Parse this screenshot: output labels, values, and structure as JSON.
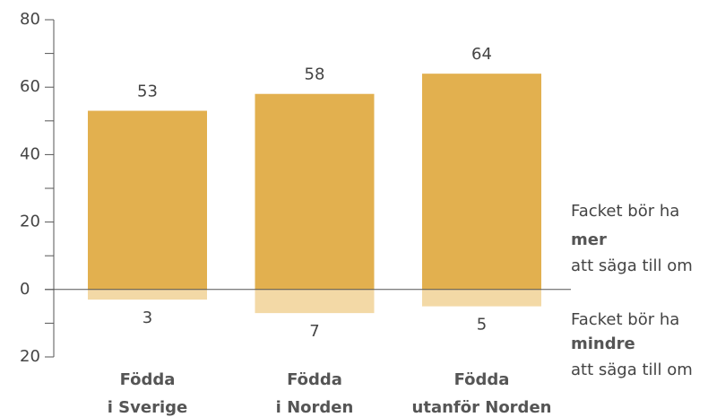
{
  "chart_data": {
    "type": "bar",
    "categories": [
      [
        "Födda",
        "i Sverige"
      ],
      [
        "Födda",
        "i Norden"
      ],
      [
        "Födda",
        "utanför Norden"
      ]
    ],
    "series": [
      {
        "name": [
          "Facket bör ha",
          "mer",
          "att säga till om"
        ],
        "color": "#e2b04f",
        "values": [
          53,
          58,
          64
        ]
      },
      {
        "name": [
          "Facket bör ha",
          "mindre",
          "att säga till om"
        ],
        "color": "#f3d9a6",
        "values": [
          -3,
          -7,
          -5
        ],
        "value_labels": [
          "3",
          "7",
          "5"
        ]
      }
    ],
    "ylim": [
      -20,
      80
    ],
    "yticks": [
      {
        "value": -20,
        "label": "20"
      },
      0,
      20,
      40,
      60,
      80
    ],
    "minor_yticks": [
      -10,
      10,
      30,
      50,
      70
    ]
  }
}
